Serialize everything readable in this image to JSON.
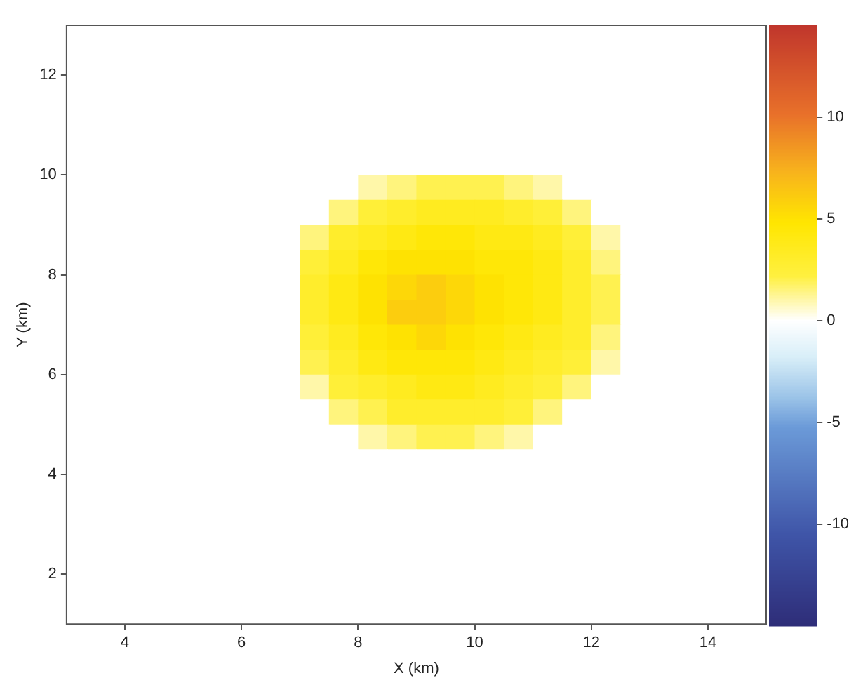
{
  "chart_data": {
    "type": "heatmap",
    "xlabel": "X (km)",
    "ylabel": "Y (km)",
    "x": [
      3.25,
      3.75,
      4.25,
      4.75,
      5.25,
      5.75,
      6.25,
      6.75,
      7.25,
      7.75,
      8.25,
      8.75,
      9.25,
      9.75,
      10.25,
      10.75,
      11.25,
      11.75,
      12.25,
      12.75,
      13.25,
      13.75,
      14.25,
      14.75
    ],
    "y": [
      12.75,
      12.25,
      11.75,
      11.25,
      10.75,
      10.25,
      9.75,
      9.25,
      8.75,
      8.25,
      7.75,
      7.25,
      6.75,
      6.25,
      5.75,
      5.25,
      4.75,
      4.25,
      3.75,
      3.25,
      2.75,
      2.25,
      1.75,
      1.25
    ],
    "xlim": [
      3,
      15
    ],
    "xticks": [
      4,
      6,
      8,
      10,
      12,
      14
    ],
    "ylim": [
      1,
      13
    ],
    "yticks": [
      2,
      4,
      6,
      8,
      10,
      12
    ],
    "clim": [
      -15,
      14.5
    ],
    "cticks": [
      -10,
      -5,
      0,
      5,
      10
    ],
    "cells": [
      [
        0,
        0,
        0,
        0,
        0,
        0,
        0,
        0,
        0,
        0,
        0,
        0,
        0,
        0,
        0,
        0,
        0,
        0,
        0,
        0,
        0,
        0,
        0,
        0
      ],
      [
        0,
        0,
        0,
        0,
        0,
        0,
        0,
        0,
        0,
        0,
        0,
        0,
        0,
        0,
        0,
        0,
        0,
        0,
        0,
        0,
        0,
        0,
        0,
        0
      ],
      [
        0,
        0,
        0,
        0,
        0,
        0,
        0,
        0,
        0,
        0,
        0,
        0,
        0,
        0,
        0,
        0,
        0,
        0,
        0,
        0,
        0,
        0,
        0,
        0
      ],
      [
        0,
        0,
        0,
        0,
        0,
        0,
        0,
        0,
        0,
        0,
        0,
        0,
        0,
        0,
        0,
        0,
        0,
        0,
        0,
        0,
        0,
        0,
        0,
        0
      ],
      [
        0,
        0,
        0,
        0,
        0,
        0,
        0,
        0,
        0,
        0,
        0,
        0,
        0,
        0,
        0,
        0,
        0,
        0,
        0,
        0,
        0,
        0,
        0,
        0
      ],
      [
        0,
        0,
        0,
        0,
        0,
        0,
        0,
        0,
        0,
        0,
        0,
        0,
        0,
        0,
        0,
        0,
        0,
        0,
        0,
        0,
        0,
        0,
        0,
        0
      ],
      [
        0,
        0,
        0,
        0,
        0,
        0,
        0,
        0,
        0,
        0,
        1,
        1.5,
        2,
        2,
        2,
        1.5,
        1,
        0,
        0,
        0,
        0,
        0,
        0,
        0
      ],
      [
        0,
        0,
        0,
        0,
        0,
        0,
        0,
        0,
        0,
        1.5,
        2.5,
        3,
        3.5,
        3.5,
        3.5,
        3,
        2.5,
        1.5,
        0,
        0,
        0,
        0,
        0,
        0
      ],
      [
        0,
        0,
        0,
        0,
        0,
        0,
        0,
        0,
        1.5,
        3,
        3.5,
        4,
        4.5,
        4.5,
        4,
        4,
        3.5,
        2.5,
        1,
        0,
        0,
        0,
        0,
        0
      ],
      [
        0,
        0,
        0,
        0,
        0,
        0,
        0,
        0,
        2.5,
        3.5,
        4.5,
        5,
        5,
        5,
        4.5,
        4.5,
        4,
        3,
        1.5,
        0,
        0,
        0,
        0,
        0
      ],
      [
        0,
        0,
        0,
        0,
        0,
        0,
        0,
        0,
        3,
        4,
        5,
        5.5,
        6,
        5.5,
        5,
        4.5,
        4,
        3,
        2,
        0,
        0,
        0,
        0,
        0
      ],
      [
        0,
        0,
        0,
        0,
        0,
        0,
        0,
        0,
        3,
        4,
        5,
        6,
        6,
        5.5,
        5,
        4.5,
        4,
        3,
        2,
        0,
        0,
        0,
        0,
        0
      ],
      [
        0,
        0,
        0,
        0,
        0,
        0,
        0,
        0,
        2.5,
        3.5,
        4.5,
        5,
        5.5,
        5,
        4.5,
        4,
        3.5,
        3,
        1.5,
        0,
        0,
        0,
        0,
        0
      ],
      [
        0,
        0,
        0,
        0,
        0,
        0,
        0,
        0,
        2,
        3,
        4,
        4.5,
        4.5,
        4.5,
        4,
        3.5,
        3,
        2.5,
        1,
        0,
        0,
        0,
        0,
        0
      ],
      [
        0,
        0,
        0,
        0,
        0,
        0,
        0,
        0,
        1,
        2.5,
        3,
        3.5,
        4,
        4,
        3.5,
        3,
        2.5,
        1.5,
        0,
        0,
        0,
        0,
        0,
        0
      ],
      [
        0,
        0,
        0,
        0,
        0,
        0,
        0,
        0,
        0,
        1.5,
        2,
        3,
        3,
        3,
        3,
        2.5,
        1.5,
        0,
        0,
        0,
        0,
        0,
        0,
        0
      ],
      [
        0,
        0,
        0,
        0,
        0,
        0,
        0,
        0,
        0,
        0,
        1,
        1.5,
        2,
        2,
        1.5,
        1,
        0,
        0,
        0,
        0,
        0,
        0,
        0,
        0
      ],
      [
        0,
        0,
        0,
        0,
        0,
        0,
        0,
        0,
        0,
        0,
        0,
        0,
        0,
        0,
        0,
        0,
        0,
        0,
        0,
        0,
        0,
        0,
        0,
        0
      ],
      [
        0,
        0,
        0,
        0,
        0,
        0,
        0,
        0,
        0,
        0,
        0,
        0,
        0,
        0,
        0,
        0,
        0,
        0,
        0,
        0,
        0,
        0,
        0,
        0
      ],
      [
        0,
        0,
        0,
        0,
        0,
        0,
        0,
        0,
        0,
        0,
        0,
        0,
        0,
        0,
        0,
        0,
        0,
        0,
        0,
        0,
        0,
        0,
        0,
        0
      ],
      [
        0,
        0,
        0,
        0,
        0,
        0,
        0,
        0,
        0,
        0,
        0,
        0,
        0,
        0,
        0,
        0,
        0,
        0,
        0,
        0,
        0,
        0,
        0,
        0
      ],
      [
        0,
        0,
        0,
        0,
        0,
        0,
        0,
        0,
        0,
        0,
        0,
        0,
        0,
        0,
        0,
        0,
        0,
        0,
        0,
        0,
        0,
        0,
        0,
        0
      ],
      [
        0,
        0,
        0,
        0,
        0,
        0,
        0,
        0,
        0,
        0,
        0,
        0,
        0,
        0,
        0,
        0,
        0,
        0,
        0,
        0,
        0,
        0,
        0,
        0
      ],
      [
        0,
        0,
        0,
        0,
        0,
        0,
        0,
        0,
        0,
        0,
        0,
        0,
        0,
        0,
        0,
        0,
        0,
        0,
        0,
        0,
        0,
        0,
        0,
        0
      ]
    ]
  }
}
